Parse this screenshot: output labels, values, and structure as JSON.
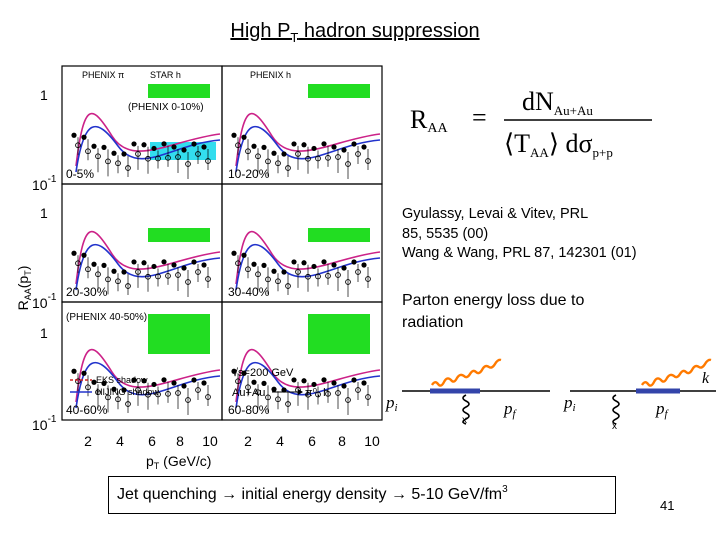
{
  "title": {
    "main": "High P",
    "sub": "T",
    "rest": " hadron suppression"
  },
  "figure": {
    "y_axis_label": "R",
    "y_axis_label_sub": "AA",
    "y_axis_label_arg": "(p",
    "y_axis_label_arg_sub": "T",
    "y_axis_label_close": ")",
    "x_axis_label": "p",
    "x_axis_label_sub": "T",
    "x_axis_label_unit": " (GeV/c)",
    "x_ticks": [
      "2",
      "4",
      "6",
      "8",
      "10",
      "2",
      "4",
      "6",
      "8",
      "10"
    ],
    "y_tick_one": "1",
    "y_tick_tenth_base": "10",
    "y_tick_tenth_exp": "-1",
    "panels": [
      {
        "centrality": "0-5%",
        "legend_a": "PHENIX π",
        "legend_b": "STAR h",
        "note": "(PHENIX 0-10%)"
      },
      {
        "centrality": "10-20%",
        "legend_a": "PHENIX h",
        "legend_b": "",
        "note": ""
      },
      {
        "centrality": "20-30%",
        "legend_a": "",
        "legend_b": "",
        "note": ""
      },
      {
        "centrality": "30-40%",
        "legend_a": "",
        "legend_b": "",
        "note": ""
      },
      {
        "centrality": "40-60%",
        "legend_a": "",
        "legend_b": "",
        "note": "(PHENIX 40-50%)"
      },
      {
        "centrality": "60-80%",
        "legend_a": "",
        "legend_b": "",
        "note": ""
      }
    ],
    "legend_eks": "EKS shadow",
    "legend_hijing": "HIJING shadow",
    "energy_label": "√s=200 GeV",
    "system_label": "Au+Au",
    "reaction_label": "π⁰, h"
  },
  "formula": {
    "lhs": "R",
    "lhs_sub": "AA",
    "equals": "=",
    "num": "dN",
    "num_sub": "Au+Au",
    "den_open": "⟨T",
    "den_sub": "AA",
    "den_close": "⟩ dσ",
    "den_sub2": "p+p"
  },
  "references": [
    "Gyulassy, Levai & Vitev, PRL",
    "85, 5535 (00)",
    "Wang & Wang, PRL 87, 142301 (01)"
  ],
  "energy_loss": [
    "Parton energy loss due to",
    "radiation"
  ],
  "diagram": {
    "pi": "p",
    "pi_sub": "i",
    "pf": "p",
    "pf_sub": "f",
    "k": "k",
    "x_mark": "x"
  },
  "conclusion": {
    "text": "Jet quenching → initial energy density → 5-10 GeV/fm",
    "sup": "3"
  },
  "page_number": "41",
  "colors": {
    "green_band": "#22dd22",
    "cyan_band": "#33ddee",
    "pink_curve": "#cc2288",
    "blue_curve": "#2233cc",
    "orange_line": "#ff7a00",
    "diagram_blue": "#3344aa",
    "eks_red": "#cc2222"
  }
}
